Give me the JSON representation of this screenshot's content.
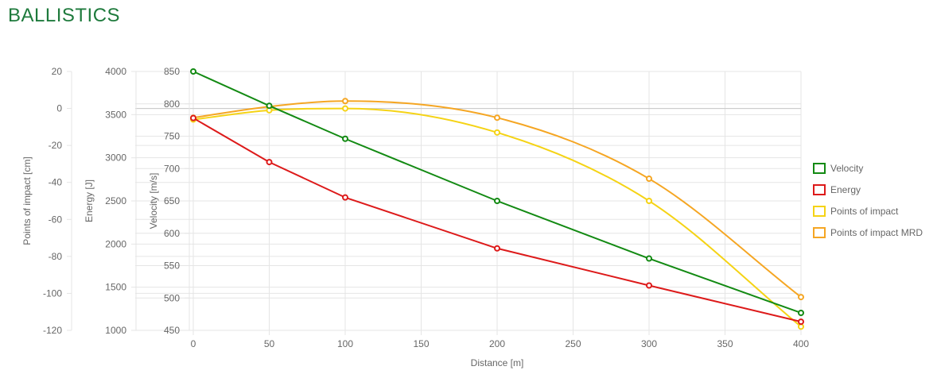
{
  "page": {
    "title": "BALLISTICS"
  },
  "chart_data": {
    "type": "line",
    "x": [
      0,
      50,
      100,
      200,
      300,
      400
    ],
    "xlabel": "Distance [m]",
    "xticks": [
      0,
      50,
      100,
      150,
      200,
      250,
      300,
      350,
      400
    ],
    "xlim": [
      0,
      400
    ],
    "axes": [
      {
        "id": "poi",
        "label": "Points of impact [cm]",
        "ticks": [
          20,
          0,
          -20,
          -40,
          -60,
          -80,
          -100,
          -120
        ],
        "ylim": [
          -120,
          20
        ]
      },
      {
        "id": "energy",
        "label": "Energy [J]",
        "ticks": [
          4000,
          3500,
          3000,
          2500,
          2000,
          1500,
          1000
        ],
        "ylim": [
          1000,
          4000
        ]
      },
      {
        "id": "velocity",
        "label": "Velocity [m/s]",
        "ticks": [
          850,
          800,
          750,
          700,
          650,
          600,
          550,
          500,
          450
        ],
        "ylim": [
          450,
          850
        ]
      }
    ],
    "series": [
      {
        "name": "Velocity",
        "axis": "velocity",
        "color": "#138a13",
        "values": [
          850,
          797,
          746,
          650,
          561,
          477
        ]
      },
      {
        "name": "Energy",
        "axis": "energy",
        "color": "#dd1a1a",
        "values": [
          3460,
          2950,
          2540,
          1950,
          1520,
          1100
        ]
      },
      {
        "name": "Points of impact",
        "axis": "poi",
        "color": "#f5d315",
        "values": [
          -6,
          -1,
          0,
          -13,
          -50,
          -118
        ]
      },
      {
        "name": "Points of impact MRD",
        "axis": "poi",
        "color": "#f5a623",
        "values": [
          -5,
          1,
          4,
          -5,
          -38,
          -102
        ]
      }
    ],
    "grid": true,
    "legend_position": "right"
  }
}
